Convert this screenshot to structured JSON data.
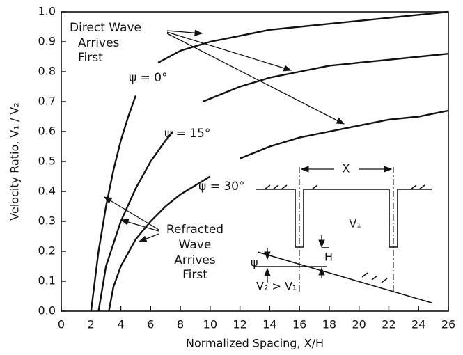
{
  "chart_data": {
    "type": "line",
    "x_label": "Normalized Spacing, X/H",
    "y_label": "Velocity Ratio, V₁ / V₂",
    "xlim": [
      0,
      26
    ],
    "ylim": [
      0,
      1
    ],
    "xticks": [
      0,
      2,
      4,
      6,
      8,
      10,
      12,
      14,
      16,
      18,
      20,
      22,
      24,
      26
    ],
    "yticks": [
      {
        "value": 0,
        "label": "0.0"
      },
      0.1,
      0.2,
      0.3,
      0.4,
      0.5,
      0.6,
      0.7,
      0.8,
      0.9,
      {
        "value": 1,
        "label": "1.0"
      }
    ],
    "series": [
      {
        "name": "ψ = 0°",
        "color": "#111111",
        "x": [
          2.0,
          2.5,
          3,
          3.5,
          4,
          4.5,
          5,
          null,
          6.5,
          8,
          10,
          12,
          14,
          16,
          18,
          20,
          22,
          24,
          26
        ],
        "values": [
          0,
          0.2,
          0.35,
          0.47,
          0.57,
          0.65,
          0.72,
          null,
          0.83,
          0.87,
          0.9,
          0.92,
          0.94,
          0.95,
          0.96,
          0.97,
          0.98,
          0.99,
          1.0
        ]
      },
      {
        "name": "ψ = 15°",
        "color": "#111111",
        "x": [
          2.5,
          3,
          4,
          5,
          6,
          7,
          7.5,
          null,
          9.5,
          11,
          12,
          14,
          16,
          18,
          20,
          22,
          24,
          26
        ],
        "values": [
          0,
          0.15,
          0.3,
          0.41,
          0.5,
          0.57,
          0.6,
          null,
          0.7,
          0.73,
          0.75,
          0.78,
          0.8,
          0.82,
          0.83,
          0.84,
          0.85,
          0.86
        ]
      },
      {
        "name": "ψ = 30°",
        "color": "#111111",
        "x": [
          3.2,
          3.5,
          4,
          5,
          6,
          7,
          8,
          9,
          10,
          null,
          12,
          14,
          16,
          18,
          20,
          22,
          24,
          26
        ],
        "values": [
          0,
          0.08,
          0.15,
          0.24,
          0.3,
          0.35,
          0.39,
          0.42,
          0.45,
          null,
          0.51,
          0.55,
          0.58,
          0.6,
          0.62,
          0.64,
          0.65,
          0.67
        ]
      }
    ],
    "annotations": [
      {
        "lines": [
          "Direct Wave",
          "Arrives",
          "First"
        ]
      },
      {
        "lines": [
          "Refracted",
          "Wave",
          "Arrives",
          "First"
        ]
      }
    ],
    "inset_labels": [
      "X",
      "V₁",
      "H",
      "ψ",
      "V₂ > V₁"
    ]
  }
}
